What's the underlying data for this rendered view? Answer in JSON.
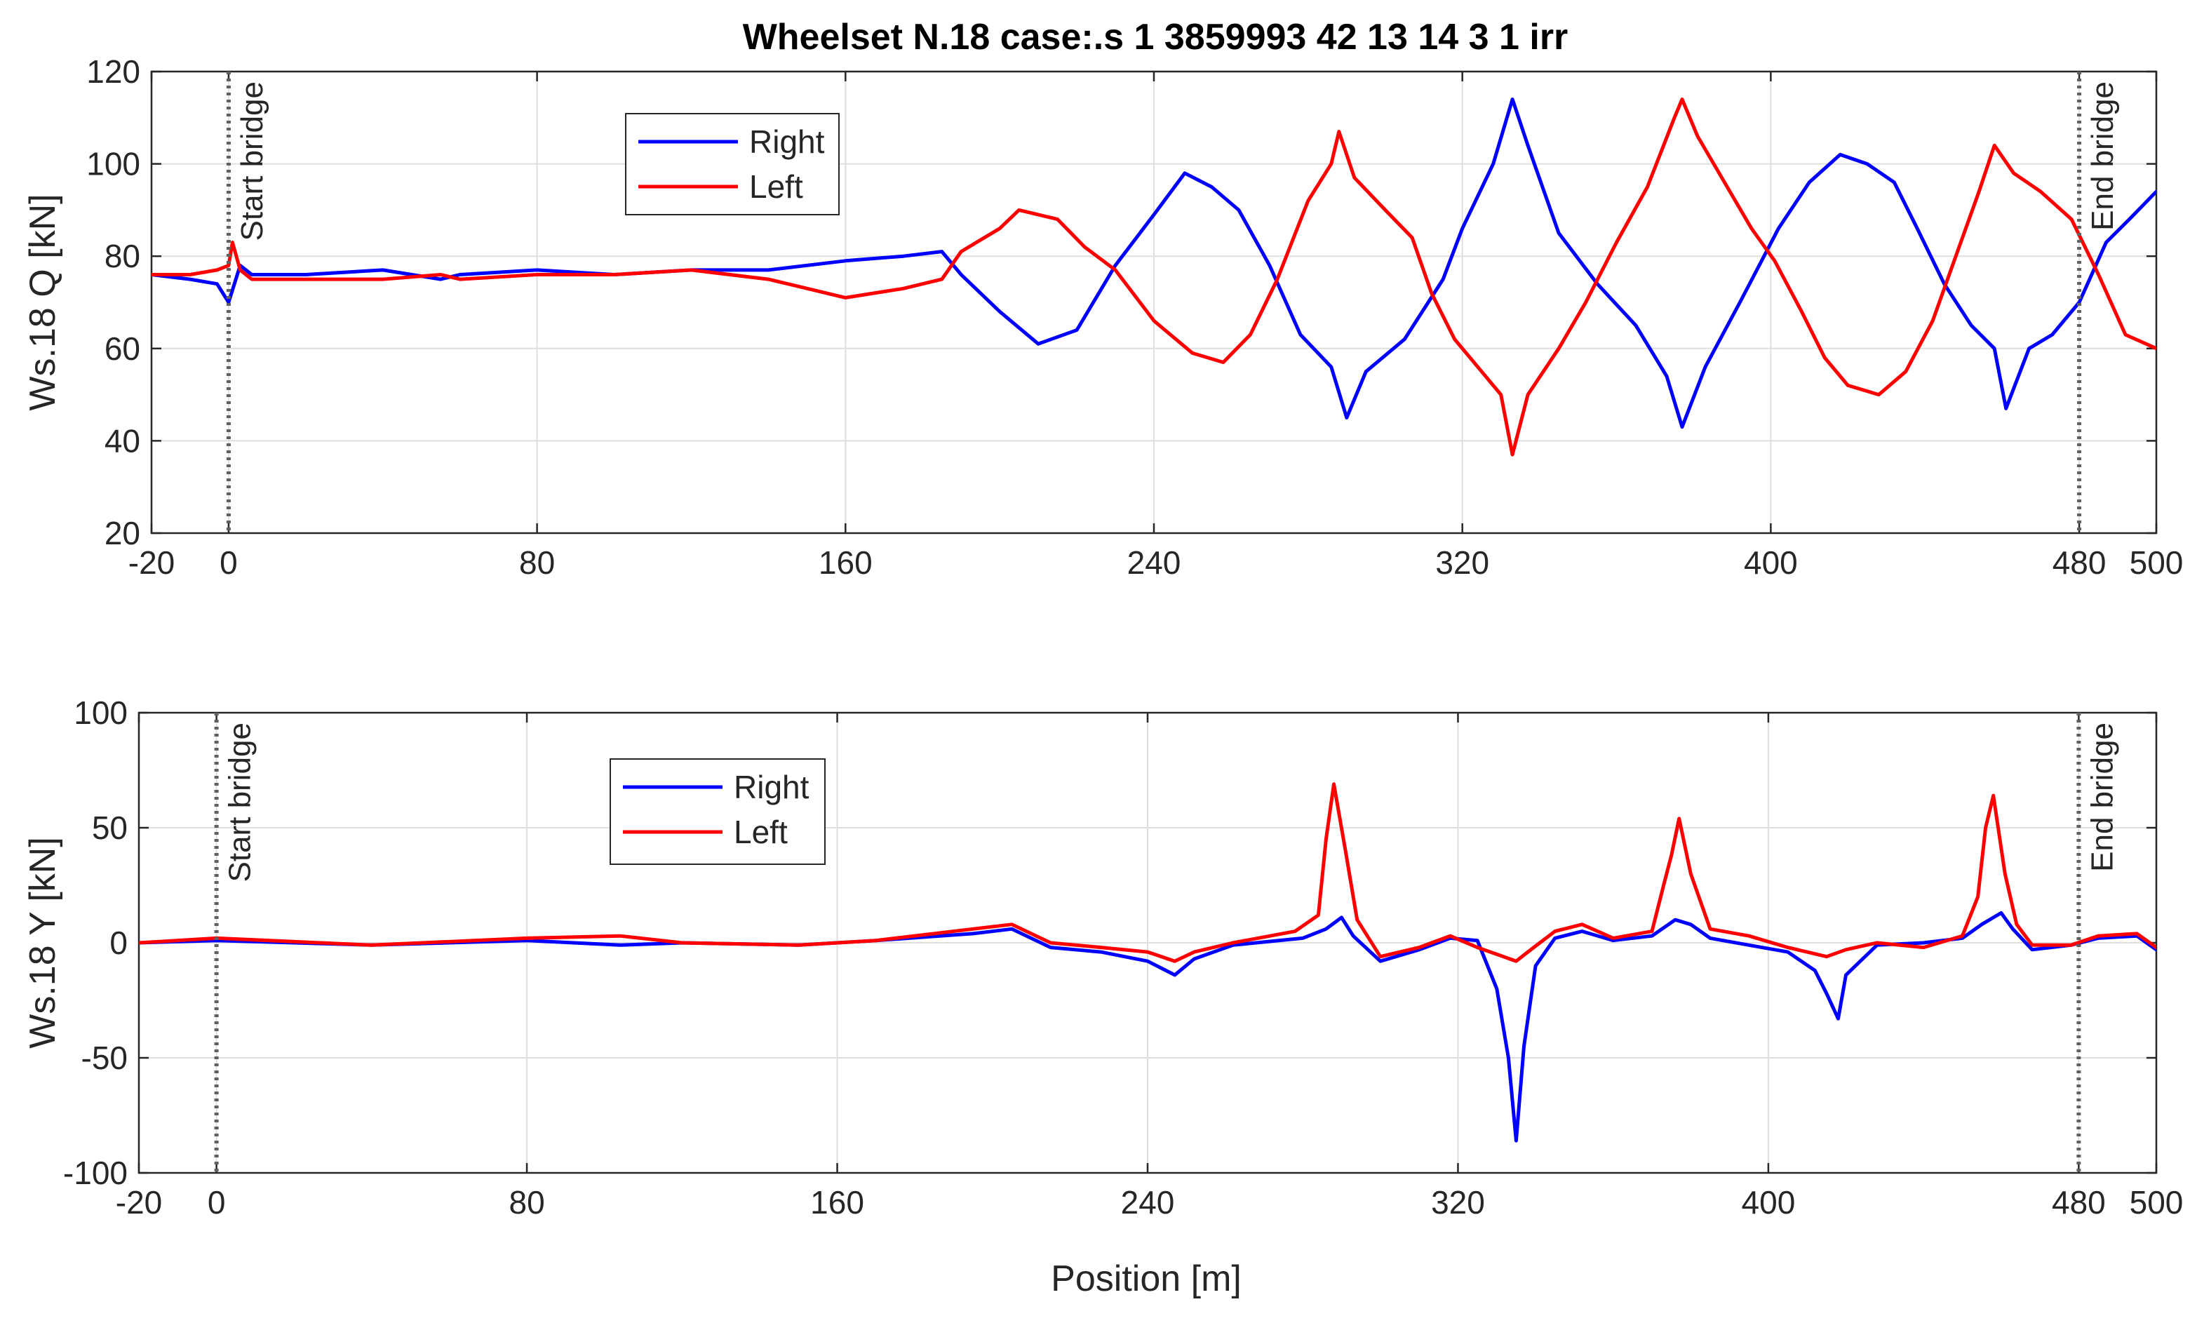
{
  "chart_data": [
    {
      "type": "line",
      "title": "Wheelset N.18  case:.s 1 3859993 42 13 14 3 1 irr",
      "ylabel": "Ws.18 Q [kN]",
      "xlabel": "",
      "xlim": [
        -20,
        500
      ],
      "ylim": [
        20,
        120
      ],
      "xticks": [
        -20,
        0,
        80,
        160,
        240,
        320,
        400,
        480,
        500
      ],
      "xtick_labels": [
        "-20",
        "0",
        "80",
        "160",
        "240",
        "320",
        "400",
        "480",
        "500"
      ],
      "yticks": [
        20,
        40,
        60,
        80,
        100,
        120
      ],
      "ytick_labels": [
        "20",
        "40",
        "60",
        "80",
        "100",
        "120"
      ],
      "grid": true,
      "legend_position": "upper-left-center",
      "markers": [
        {
          "x": 0,
          "label": "Start bridge"
        },
        {
          "x": 480,
          "label": "End bridge"
        }
      ],
      "series": [
        {
          "name": "Right",
          "color": "#0000ff",
          "points": [
            [
              -20,
              76
            ],
            [
              -10,
              75
            ],
            [
              -3,
              74
            ],
            [
              0,
              70
            ],
            [
              3,
              78
            ],
            [
              6,
              76
            ],
            [
              20,
              76
            ],
            [
              40,
              77
            ],
            [
              55,
              75
            ],
            [
              60,
              76
            ],
            [
              80,
              77
            ],
            [
              100,
              76
            ],
            [
              120,
              77
            ],
            [
              140,
              77
            ],
            [
              160,
              79
            ],
            [
              175,
              80
            ],
            [
              185,
              81
            ],
            [
              190,
              76
            ],
            [
              200,
              68
            ],
            [
              210,
              61
            ],
            [
              220,
              64
            ],
            [
              230,
              78
            ],
            [
              240,
              89
            ],
            [
              248,
              98
            ],
            [
              255,
              95
            ],
            [
              262,
              90
            ],
            [
              270,
              78
            ],
            [
              278,
              63
            ],
            [
              286,
              56
            ],
            [
              290,
              45
            ],
            [
              295,
              55
            ],
            [
              305,
              62
            ],
            [
              315,
              75
            ],
            [
              320,
              86
            ],
            [
              328,
              100
            ],
            [
              333,
              114
            ],
            [
              337,
              104
            ],
            [
              345,
              85
            ],
            [
              355,
              74
            ],
            [
              365,
              65
            ],
            [
              373,
              54
            ],
            [
              377,
              43
            ],
            [
              383,
              56
            ],
            [
              392,
              70
            ],
            [
              402,
              86
            ],
            [
              410,
              96
            ],
            [
              418,
              102
            ],
            [
              425,
              100
            ],
            [
              432,
              96
            ],
            [
              438,
              86
            ],
            [
              445,
              74
            ],
            [
              452,
              65
            ],
            [
              458,
              60
            ],
            [
              461,
              47
            ],
            [
              467,
              60
            ],
            [
              473,
              63
            ],
            [
              480,
              70
            ],
            [
              487,
              83
            ],
            [
              493,
              88
            ],
            [
              500,
              94
            ]
          ]
        },
        {
          "name": "Left",
          "color": "#ff0000",
          "points": [
            [
              -20,
              76
            ],
            [
              -10,
              76
            ],
            [
              -3,
              77
            ],
            [
              0,
              78
            ],
            [
              1,
              83
            ],
            [
              3,
              77
            ],
            [
              6,
              75
            ],
            [
              20,
              75
            ],
            [
              40,
              75
            ],
            [
              55,
              76
            ],
            [
              60,
              75
            ],
            [
              80,
              76
            ],
            [
              100,
              76
            ],
            [
              120,
              77
            ],
            [
              140,
              75
            ],
            [
              160,
              71
            ],
            [
              175,
              73
            ],
            [
              185,
              75
            ],
            [
              190,
              81
            ],
            [
              200,
              86
            ],
            [
              205,
              90
            ],
            [
              215,
              88
            ],
            [
              222,
              82
            ],
            [
              230,
              77
            ],
            [
              240,
              66
            ],
            [
              250,
              59
            ],
            [
              258,
              57
            ],
            [
              265,
              63
            ],
            [
              272,
              75
            ],
            [
              280,
              92
            ],
            [
              286,
              100
            ],
            [
              288,
              107
            ],
            [
              292,
              97
            ],
            [
              300,
              90
            ],
            [
              307,
              84
            ],
            [
              312,
              72
            ],
            [
              318,
              62
            ],
            [
              325,
              55
            ],
            [
              330,
              50
            ],
            [
              333,
              37
            ],
            [
              337,
              50
            ],
            [
              345,
              60
            ],
            [
              352,
              70
            ],
            [
              360,
              83
            ],
            [
              368,
              95
            ],
            [
              375,
              110
            ],
            [
              377,
              114
            ],
            [
              381,
              106
            ],
            [
              388,
              96
            ],
            [
              395,
              86
            ],
            [
              401,
              79
            ],
            [
              408,
              68
            ],
            [
              414,
              58
            ],
            [
              420,
              52
            ],
            [
              428,
              50
            ],
            [
              435,
              55
            ],
            [
              442,
              66
            ],
            [
              448,
              80
            ],
            [
              454,
              94
            ],
            [
              458,
              104
            ],
            [
              463,
              98
            ],
            [
              470,
              94
            ],
            [
              478,
              88
            ],
            [
              485,
              76
            ],
            [
              492,
              63
            ],
            [
              500,
              60
            ]
          ]
        }
      ]
    },
    {
      "type": "line",
      "title": "",
      "ylabel": "Ws.18 Y [kN]",
      "xlabel": "Position [m]",
      "xlim": [
        -20,
        500
      ],
      "ylim": [
        -100,
        100
      ],
      "xticks": [
        -20,
        0,
        80,
        160,
        240,
        320,
        400,
        480,
        500
      ],
      "xtick_labels": [
        "-20",
        "0",
        "80",
        "160",
        "240",
        "320",
        "400",
        "480",
        "500"
      ],
      "yticks": [
        -100,
        -50,
        0,
        50,
        100
      ],
      "ytick_labels": [
        "-100",
        "-50",
        "0",
        "50",
        "100"
      ],
      "grid": true,
      "legend_position": "upper-left-center",
      "markers": [
        {
          "x": 0,
          "label": "Start bridge"
        },
        {
          "x": 480,
          "label": "End bridge"
        }
      ],
      "series": [
        {
          "name": "Right",
          "color": "#0000ff",
          "points": [
            [
              -20,
              0
            ],
            [
              0,
              1
            ],
            [
              40,
              -1
            ],
            [
              80,
              1
            ],
            [
              104,
              -1
            ],
            [
              120,
              0
            ],
            [
              150,
              -1
            ],
            [
              170,
              1
            ],
            [
              195,
              4
            ],
            [
              205,
              6
            ],
            [
              215,
              -2
            ],
            [
              228,
              -4
            ],
            [
              240,
              -8
            ],
            [
              247,
              -14
            ],
            [
              252,
              -7
            ],
            [
              262,
              -1
            ],
            [
              280,
              2
            ],
            [
              286,
              6
            ],
            [
              290,
              11
            ],
            [
              293,
              3
            ],
            [
              300,
              -8
            ],
            [
              310,
              -3
            ],
            [
              318,
              2
            ],
            [
              325,
              1
            ],
            [
              330,
              -20
            ],
            [
              333,
              -50
            ],
            [
              335,
              -86
            ],
            [
              337,
              -45
            ],
            [
              340,
              -10
            ],
            [
              345,
              2
            ],
            [
              352,
              5
            ],
            [
              360,
              1
            ],
            [
              370,
              3
            ],
            [
              376,
              10
            ],
            [
              380,
              8
            ],
            [
              385,
              2
            ],
            [
              395,
              -1
            ],
            [
              405,
              -4
            ],
            [
              412,
              -12
            ],
            [
              415,
              -22
            ],
            [
              418,
              -33
            ],
            [
              420,
              -14
            ],
            [
              428,
              -1
            ],
            [
              440,
              0
            ],
            [
              450,
              2
            ],
            [
              455,
              8
            ],
            [
              460,
              13
            ],
            [
              463,
              6
            ],
            [
              468,
              -3
            ],
            [
              478,
              -1
            ],
            [
              485,
              2
            ],
            [
              495,
              3
            ],
            [
              500,
              -3
            ]
          ]
        },
        {
          "name": "Left",
          "color": "#ff0000",
          "points": [
            [
              -20,
              0
            ],
            [
              0,
              2
            ],
            [
              40,
              -1
            ],
            [
              80,
              2
            ],
            [
              104,
              3
            ],
            [
              120,
              0
            ],
            [
              150,
              -1
            ],
            [
              170,
              1
            ],
            [
              195,
              6
            ],
            [
              205,
              8
            ],
            [
              215,
              0
            ],
            [
              228,
              -2
            ],
            [
              240,
              -4
            ],
            [
              247,
              -8
            ],
            [
              252,
              -4
            ],
            [
              262,
              0
            ],
            [
              278,
              5
            ],
            [
              284,
              12
            ],
            [
              286,
              45
            ],
            [
              288,
              69
            ],
            [
              291,
              40
            ],
            [
              294,
              10
            ],
            [
              300,
              -6
            ],
            [
              310,
              -2
            ],
            [
              318,
              3
            ],
            [
              325,
              -2
            ],
            [
              330,
              -5
            ],
            [
              335,
              -8
            ],
            [
              338,
              -4
            ],
            [
              345,
              5
            ],
            [
              352,
              8
            ],
            [
              360,
              2
            ],
            [
              370,
              5
            ],
            [
              373,
              25
            ],
            [
              375,
              38
            ],
            [
              377,
              54
            ],
            [
              380,
              30
            ],
            [
              385,
              6
            ],
            [
              395,
              3
            ],
            [
              405,
              -2
            ],
            [
              415,
              -6
            ],
            [
              420,
              -3
            ],
            [
              428,
              0
            ],
            [
              440,
              -2
            ],
            [
              450,
              3
            ],
            [
              454,
              20
            ],
            [
              456,
              50
            ],
            [
              458,
              64
            ],
            [
              461,
              30
            ],
            [
              464,
              8
            ],
            [
              468,
              -1
            ],
            [
              478,
              -1
            ],
            [
              485,
              3
            ],
            [
              495,
              4
            ],
            [
              500,
              -2
            ]
          ]
        }
      ]
    }
  ]
}
